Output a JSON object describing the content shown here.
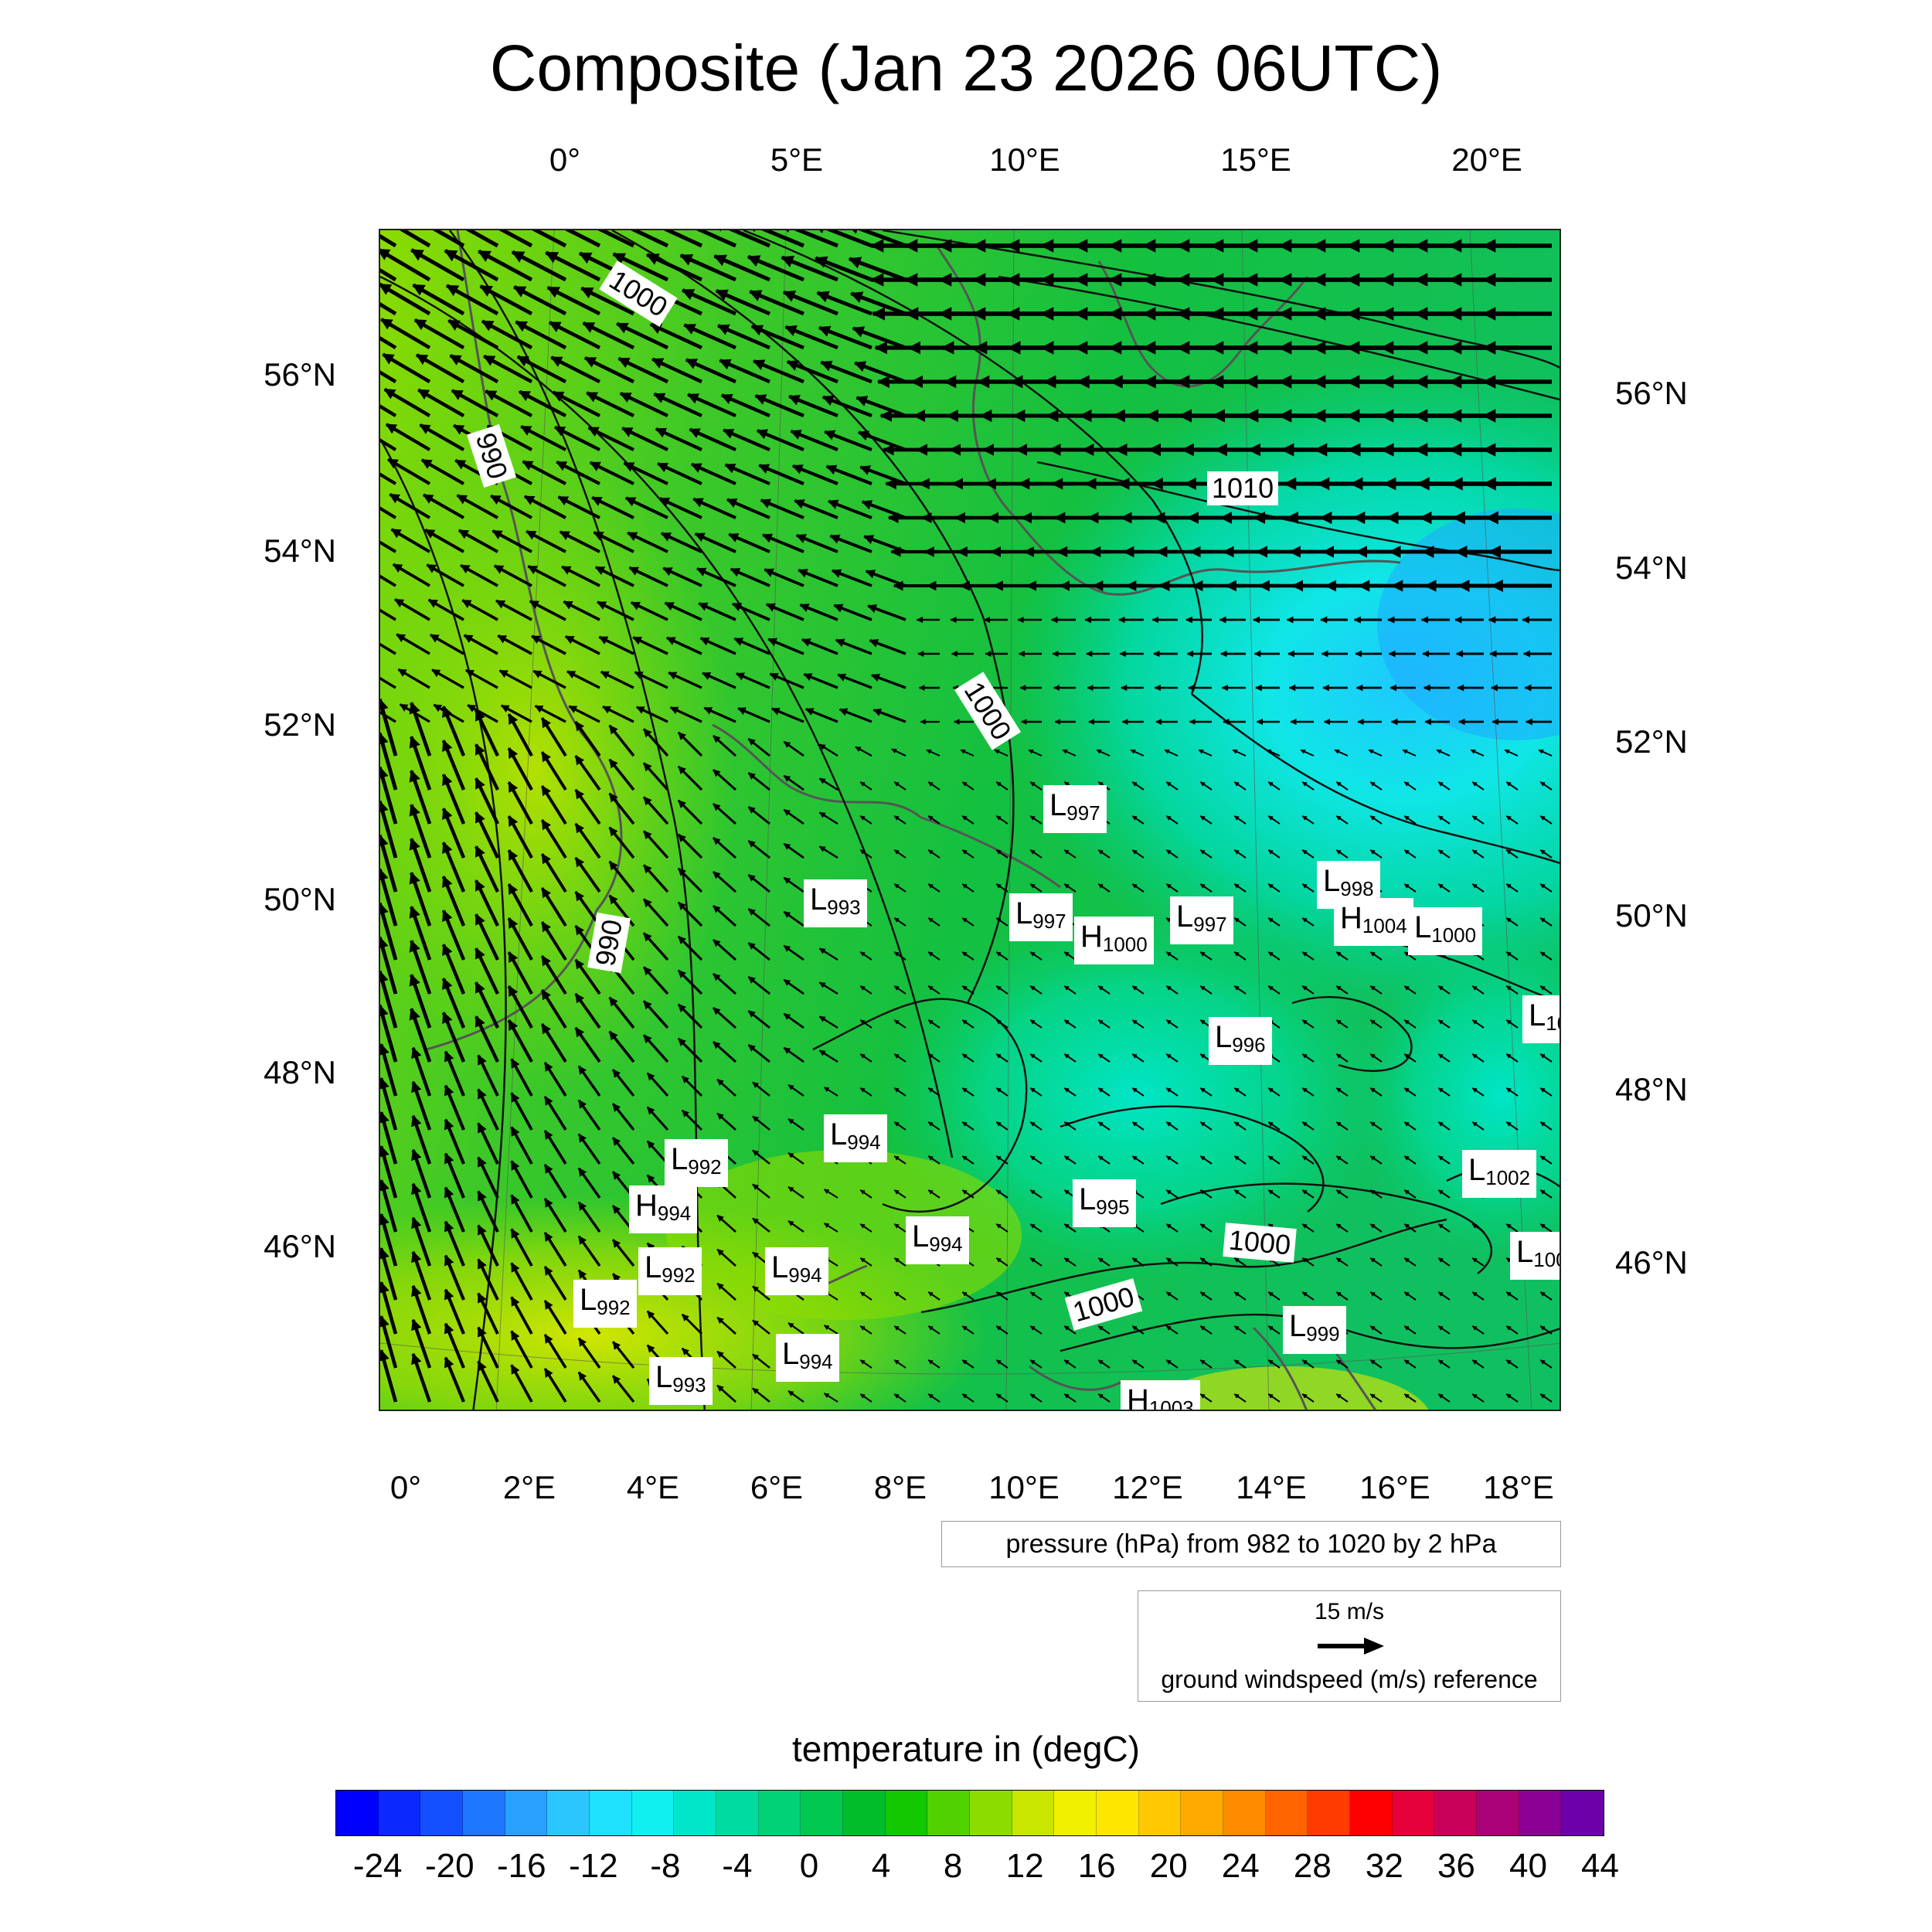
{
  "title": "Composite (Jan 23 2026 06UTC)",
  "axes": {
    "top_ticks": [
      "0°",
      "5°E",
      "10°E",
      "15°E",
      "20°E"
    ],
    "bottom_ticks": [
      "0°",
      "2°E",
      "4°E",
      "6°E",
      "8°E",
      "10°E",
      "12°E",
      "14°E",
      "16°E",
      "18°E"
    ],
    "left_ticks": [
      "56°N",
      "54°N",
      "52°N",
      "50°N",
      "48°N",
      "46°N"
    ],
    "right_ticks": [
      "56°N",
      "54°N",
      "52°N",
      "50°N",
      "48°N",
      "46°N"
    ]
  },
  "isobar_labels": [
    "1000",
    "990",
    "1000",
    "990",
    "1010",
    "1000",
    "1000"
  ],
  "pressure_centers": [
    {
      "type": "L",
      "value": "997"
    },
    {
      "type": "L",
      "value": "993"
    },
    {
      "type": "L",
      "value": "997"
    },
    {
      "type": "H",
      "value": "1000"
    },
    {
      "type": "L",
      "value": "997"
    },
    {
      "type": "L",
      "value": "998"
    },
    {
      "type": "H",
      "value": "1004"
    },
    {
      "type": "L",
      "value": "1000"
    },
    {
      "type": "L",
      "value": "10"
    },
    {
      "type": "L",
      "value": "996"
    },
    {
      "type": "L",
      "value": "994"
    },
    {
      "type": "L",
      "value": "992"
    },
    {
      "type": "H",
      "value": "994"
    },
    {
      "type": "L",
      "value": "1002"
    },
    {
      "type": "L",
      "value": "995"
    },
    {
      "type": "L",
      "value": "994"
    },
    {
      "type": "L",
      "value": "992"
    },
    {
      "type": "L",
      "value": "994"
    },
    {
      "type": "L",
      "value": "100"
    },
    {
      "type": "L",
      "value": "992"
    },
    {
      "type": "L",
      "value": "999"
    },
    {
      "type": "L",
      "value": "994"
    },
    {
      "type": "L",
      "value": "993"
    },
    {
      "type": "H",
      "value": "1003"
    }
  ],
  "pressure_legend": "pressure (hPa) from 982 to 1020 by 2 hPa",
  "wind_legend": {
    "speed": "15 m/s",
    "label": "ground windspeed (m/s) reference"
  },
  "colorbar": {
    "title": "temperature in (degC)",
    "labels": [
      "-24",
      "-20",
      "-16",
      "-12",
      "-8",
      "-4",
      "0",
      "4",
      "8",
      "12",
      "16",
      "20",
      "24",
      "28",
      "32",
      "36",
      "40",
      "44"
    ],
    "colors": [
      "#0000ff",
      "#0a28ff",
      "#1450ff",
      "#1e78ff",
      "#28a0ff",
      "#2cc6ff",
      "#1ee0ff",
      "#10f0f0",
      "#00e6c8",
      "#00dca0",
      "#00d278",
      "#00c850",
      "#00be2a",
      "#14c800",
      "#50d200",
      "#8cdc00",
      "#c8e600",
      "#f0f000",
      "#ffe600",
      "#ffc800",
      "#ffaa00",
      "#ff8c00",
      "#ff6400",
      "#ff3c00",
      "#ff0000",
      "#e6003c",
      "#c8005a",
      "#aa0078",
      "#8c0096",
      "#6e00aa"
    ]
  }
}
